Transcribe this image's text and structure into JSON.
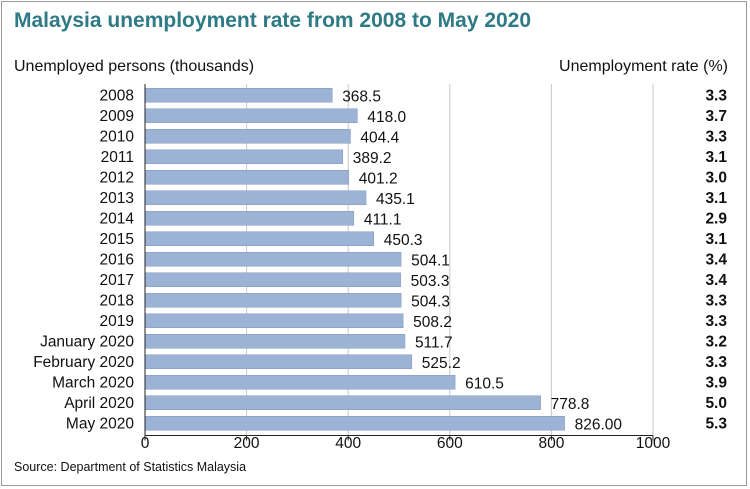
{
  "title": "Malaysia unemployment rate from 2008 to May 2020",
  "left_header": "Unemployed persons (thousands)",
  "right_header": "Unemployment rate (%)",
  "source": "Source: Department of Statistics Malaysia",
  "colors": {
    "title": "#2e7a86",
    "bar": "#9db3d6",
    "bar_edge": "#7f97c0",
    "grid": "#c8c8c8"
  },
  "chart_data": {
    "type": "bar",
    "orientation": "horizontal",
    "categories": [
      "2008",
      "2009",
      "2010",
      "2011",
      "2012",
      "2013",
      "2014",
      "2015",
      "2016",
      "2017",
      "2018",
      "2019",
      "January 2020",
      "February 2020",
      "March 2020",
      "April 2020",
      "May 2020"
    ],
    "values": [
      368.5,
      418.0,
      404.4,
      389.2,
      401.2,
      435.1,
      411.1,
      450.3,
      504.1,
      503.3,
      504.3,
      508.2,
      511.7,
      525.2,
      610.5,
      778.8,
      826.0
    ],
    "value_labels": [
      "368.5",
      "418.0",
      "404.4",
      "389.2",
      "401.2",
      "435.1",
      "411.1",
      "450.3",
      "504.1",
      "503.3",
      "504.3",
      "508.2",
      "511.7",
      "525.2",
      "610.5",
      "778.8",
      "826.00"
    ],
    "rates": [
      "3.3",
      "3.7",
      "3.3",
      "3.1",
      "3.0",
      "3.1",
      "2.9",
      "3.1",
      "3.4",
      "3.4",
      "3.3",
      "3.3",
      "3.2",
      "3.3",
      "3.9",
      "5.0",
      "5.3"
    ],
    "xlim": [
      0,
      1000
    ],
    "xticks": [
      "0",
      "200",
      "400",
      "600",
      "800",
      "1000"
    ],
    "xtick_values": [
      0,
      200,
      400,
      600,
      800,
      1000
    ],
    "grid": true
  }
}
